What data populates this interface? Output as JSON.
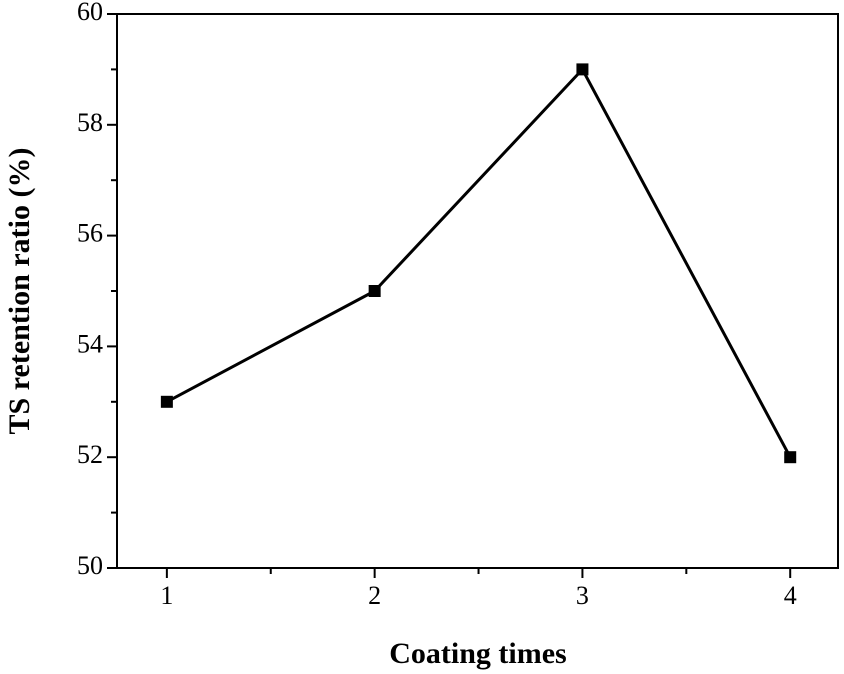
{
  "chart_data": {
    "type": "line",
    "x_label": "Coating times",
    "y_label": "TS retention ratio (%)",
    "x": [
      1,
      2,
      3,
      4
    ],
    "series": [
      {
        "color": "#000000",
        "values": [
          53,
          55,
          59,
          52
        ]
      }
    ],
    "xlim": [
      0.76,
      4.23
    ],
    "xticks": [
      1,
      2,
      3,
      4
    ],
    "ylim": [
      50,
      60
    ],
    "yticks": [
      50,
      52,
      54,
      56,
      58,
      60
    ]
  }
}
